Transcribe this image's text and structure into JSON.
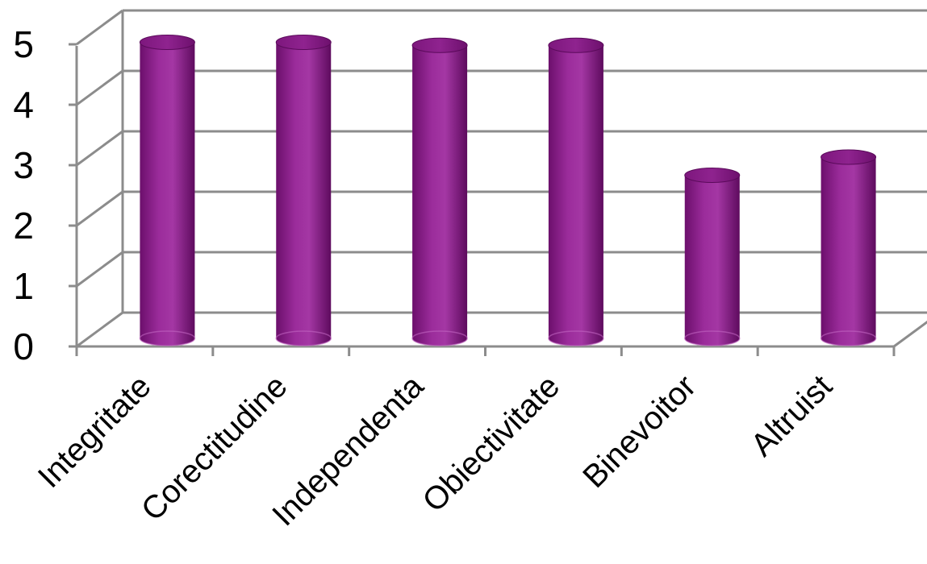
{
  "chart_data": {
    "type": "bar",
    "style": "3d-cylinder",
    "title": "",
    "xlabel": "",
    "ylabel": "",
    "categories": [
      "Integritate",
      "Corectitudine",
      "Independenta",
      "Obiectivitate",
      "Binevoitor",
      "Altruist"
    ],
    "values": [
      4.9,
      4.9,
      4.85,
      4.85,
      2.7,
      3.0
    ],
    "ylim": [
      0,
      5
    ],
    "yticks": [
      "0",
      "1",
      "2",
      "3",
      "4",
      "5"
    ],
    "grid": true,
    "legend": "none",
    "bar_color": "#8b1f8b"
  }
}
